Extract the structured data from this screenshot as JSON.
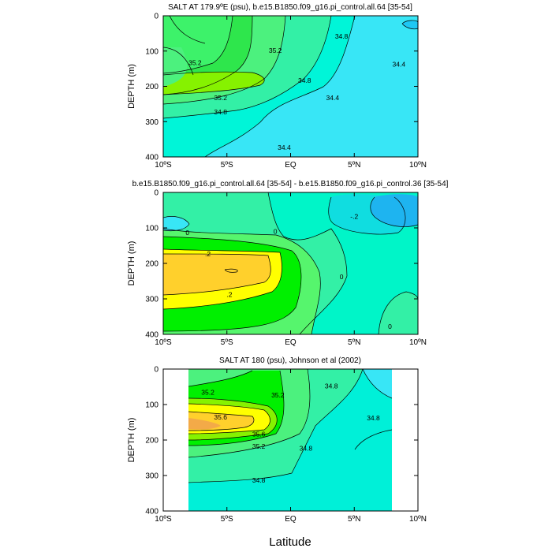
{
  "figure": {
    "xlabel": "Latitude"
  },
  "chart_data": [
    {
      "type": "contour",
      "title": "SALT AT 179.9ºE (psu), b.e15.B1850.f09_g16.pi_control.all.64 [35-54]",
      "ylabel": "DEPTH (m)",
      "x_ticks": [
        "10ºS",
        "5ºS",
        "EQ",
        "5ºN",
        "10ºN"
      ],
      "x_tick_values": [
        -10,
        -5,
        0,
        5,
        10
      ],
      "y_ticks": [
        "0",
        "100",
        "200",
        "300",
        "400"
      ],
      "y_tick_values": [
        0,
        100,
        200,
        300,
        400
      ],
      "xlim": [
        -10,
        10
      ],
      "ylim": [
        400,
        0
      ],
      "contour_labels": [
        {
          "text": "35.2",
          "lat": -7.5,
          "depth": 135
        },
        {
          "text": "35.2",
          "lat": -1.2,
          "depth": 100
        },
        {
          "text": "34.8",
          "lat": 4.0,
          "depth": 60
        },
        {
          "text": "34.4",
          "lat": 8.5,
          "depth": 140
        },
        {
          "text": "34.8",
          "lat": 1.1,
          "depth": 185
        },
        {
          "text": "35.2",
          "lat": -5.5,
          "depth": 235
        },
        {
          "text": "34.8",
          "lat": -5.5,
          "depth": 275
        },
        {
          "text": "34.4",
          "lat": 3.3,
          "depth": 235
        },
        {
          "text": "34.4",
          "lat": -0.5,
          "depth": 375
        }
      ]
    },
    {
      "type": "contour",
      "title": "b.e15.B1850.f09_g16.pi_control.all.64 [35-54] - b.e15.B1850.f09_g16.pi_control.36 [35-54]",
      "ylabel": "DEPTH (m)",
      "x_ticks": [
        "10ºS",
        "5ºS",
        "EQ",
        "5ºN",
        "10ºN"
      ],
      "x_tick_values": [
        -10,
        -5,
        0,
        5,
        10
      ],
      "y_ticks": [
        "0",
        "100",
        "200",
        "300",
        "400"
      ],
      "y_tick_values": [
        0,
        100,
        200,
        300,
        400
      ],
      "xlim": [
        -10,
        10
      ],
      "ylim": [
        400,
        0
      ],
      "contour_labels": [
        {
          "text": "0",
          "lat": -8.1,
          "depth": 115
        },
        {
          "text": ".2",
          "lat": -6.5,
          "depth": 175
        },
        {
          "text": "0",
          "lat": -1.2,
          "depth": 112
        },
        {
          "text": ".2",
          "lat": -4.8,
          "depth": 290
        },
        {
          "text": "0",
          "lat": 4.0,
          "depth": 240
        },
        {
          "text": "-.2",
          "lat": 5.0,
          "depth": 70
        },
        {
          "text": "0",
          "lat": 7.8,
          "depth": 380
        }
      ]
    },
    {
      "type": "contour",
      "title": "SALT AT 180 (psu), Johnson et al (2002)",
      "ylabel": "DEPTH (m)",
      "x_ticks": [
        "10ºS",
        "5ºS",
        "EQ",
        "5ºN",
        "10ºN"
      ],
      "x_tick_values": [
        -10,
        -5,
        0,
        5,
        10
      ],
      "y_ticks": [
        "0",
        "100",
        "200",
        "300",
        "400"
      ],
      "y_tick_values": [
        0,
        100,
        200,
        300,
        400
      ],
      "xlim": [
        -10,
        10
      ],
      "ylim": [
        400,
        0
      ],
      "data_extent_lat": [
        -8,
        8
      ],
      "contour_labels": [
        {
          "text": "35.2",
          "lat": -6.5,
          "depth": 68
        },
        {
          "text": "35.2",
          "lat": -1.0,
          "depth": 75
        },
        {
          "text": "34.8",
          "lat": 3.2,
          "depth": 50
        },
        {
          "text": "34.8",
          "lat": 6.5,
          "depth": 140
        },
        {
          "text": "35.6",
          "lat": -5.5,
          "depth": 138
        },
        {
          "text": "35.6",
          "lat": -2.5,
          "depth": 185
        },
        {
          "text": "35.2",
          "lat": -2.5,
          "depth": 220
        },
        {
          "text": "34.8",
          "lat": 1.2,
          "depth": 225
        },
        {
          "text": "34.8",
          "lat": -2.5,
          "depth": 315
        }
      ]
    }
  ]
}
